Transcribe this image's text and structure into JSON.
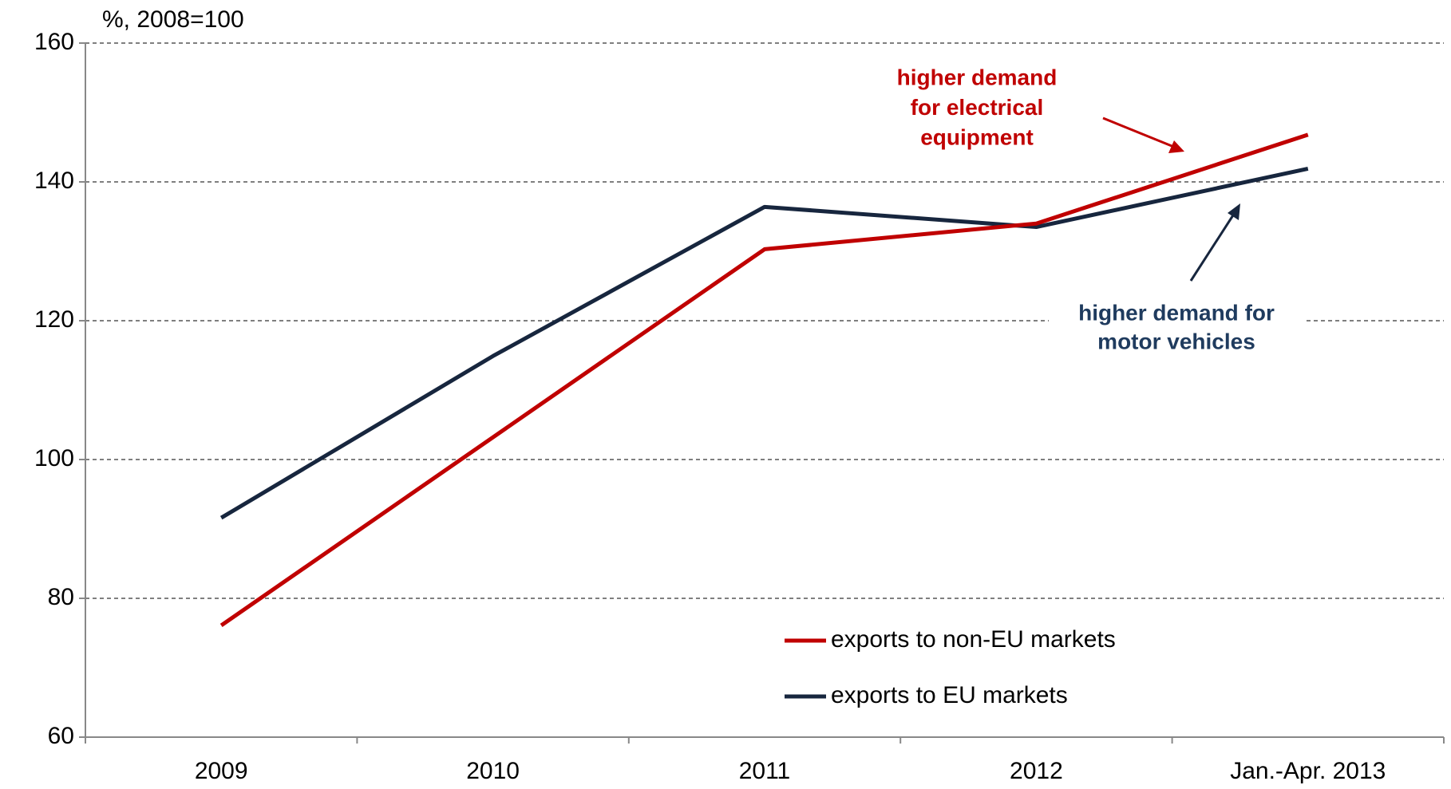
{
  "chart_data": {
    "type": "line",
    "y_label": "%, 2008=100",
    "categories": [
      "2009",
      "2010",
      "2011",
      "2012",
      "Jan.-Apr. 2013"
    ],
    "series": [
      {
        "name": "exports to non-EU markets",
        "color": "#c00000",
        "values": [
          76.1,
          103.2,
          130.3,
          134,
          146.8
        ]
      },
      {
        "name": "exports to EU markets",
        "color": "#17263e",
        "values": [
          91.6,
          114.9,
          136.4,
          133.5,
          141.9
        ]
      }
    ],
    "ylim": [
      60,
      160
    ],
    "yticks": [
      60,
      80,
      100,
      120,
      140,
      160
    ],
    "grid": true,
    "annotations": [
      {
        "lines": [
          "higher demand",
          "for electrical",
          "equipment"
        ],
        "color": "#c00000"
      },
      {
        "lines": [
          "higher demand for",
          "motor vehicles"
        ],
        "color": "#1f3b5e"
      }
    ]
  }
}
